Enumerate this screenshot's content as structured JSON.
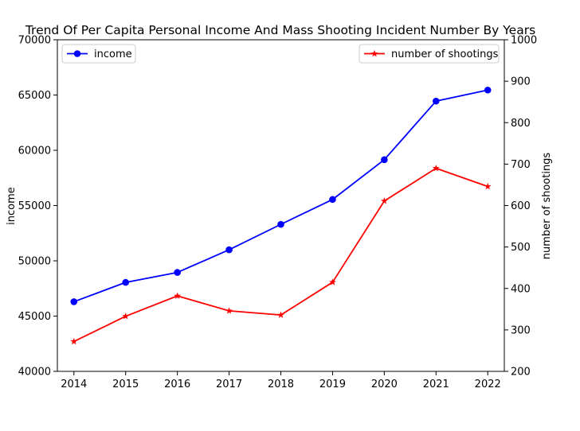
{
  "chart_data": {
    "type": "line",
    "title": "Trend Of Per Capita Personal Income And Mass Shooting Incident Number By Years",
    "x": [
      2014,
      2015,
      2016,
      2017,
      2018,
      2019,
      2020,
      2021,
      2022
    ],
    "xlabel": "",
    "y_left": {
      "label": "income",
      "lim": [
        40000,
        70000
      ],
      "ticks": [
        40000,
        45000,
        50000,
        55000,
        60000,
        65000,
        70000
      ]
    },
    "y_right": {
      "label": "number of shootings",
      "lim": [
        200,
        1000
      ],
      "ticks": [
        200,
        300,
        400,
        500,
        600,
        700,
        800,
        900,
        1000
      ]
    },
    "series": [
      {
        "name": "income",
        "axis": "left",
        "color": "#0000ff",
        "marker": "circle",
        "values": [
          46300,
          48050,
          48950,
          51000,
          53300,
          55550,
          59150,
          64450,
          65450
        ]
      },
      {
        "name": "number of shootings",
        "axis": "right",
        "color": "#ff0000",
        "marker": "star",
        "values": [
          272,
          333,
          382,
          346,
          336,
          415,
          611,
          690,
          646
        ]
      }
    ],
    "grid": false,
    "legend": {
      "income": "top-left",
      "number of shootings": "top-right"
    }
  }
}
